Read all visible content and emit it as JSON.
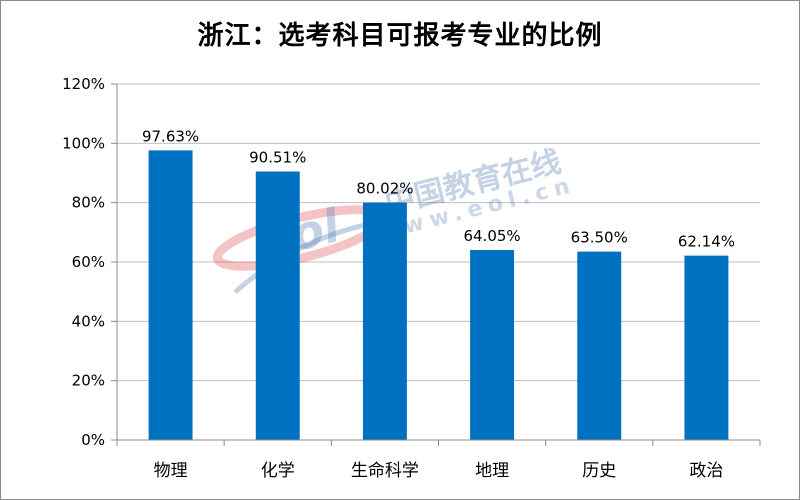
{
  "title": "浙江：选考科目可报考专业的比例",
  "watermark": {
    "logo_text": "eol",
    "site_name": "中国教育在线",
    "url": "www.eol.cn"
  },
  "colors": {
    "bar": "#0070c0",
    "gridline": "#bfbfbf",
    "axis": "#8c8c8c",
    "watermark_red": "#e0555a",
    "watermark_blue": "#5a7fb5"
  },
  "chart_data": {
    "type": "bar",
    "title": "浙江：选考科目可报考专业的比例",
    "xlabel": "",
    "ylabel": "",
    "categories": [
      "物理",
      "化学",
      "生命科学",
      "地理",
      "历史",
      "政治"
    ],
    "values": [
      97.63,
      90.51,
      80.02,
      64.05,
      63.5,
      62.14
    ],
    "data_labels": [
      "97.63%",
      "90.51%",
      "80.02%",
      "64.05%",
      "63.50%",
      "62.14%"
    ],
    "ylim": [
      0,
      120
    ],
    "y_ticks": [
      0,
      20,
      40,
      60,
      80,
      100,
      120
    ],
    "y_tick_labels": [
      "0%",
      "20%",
      "40%",
      "60%",
      "80%",
      "100%",
      "120%"
    ],
    "grid": true,
    "legend": "none"
  }
}
